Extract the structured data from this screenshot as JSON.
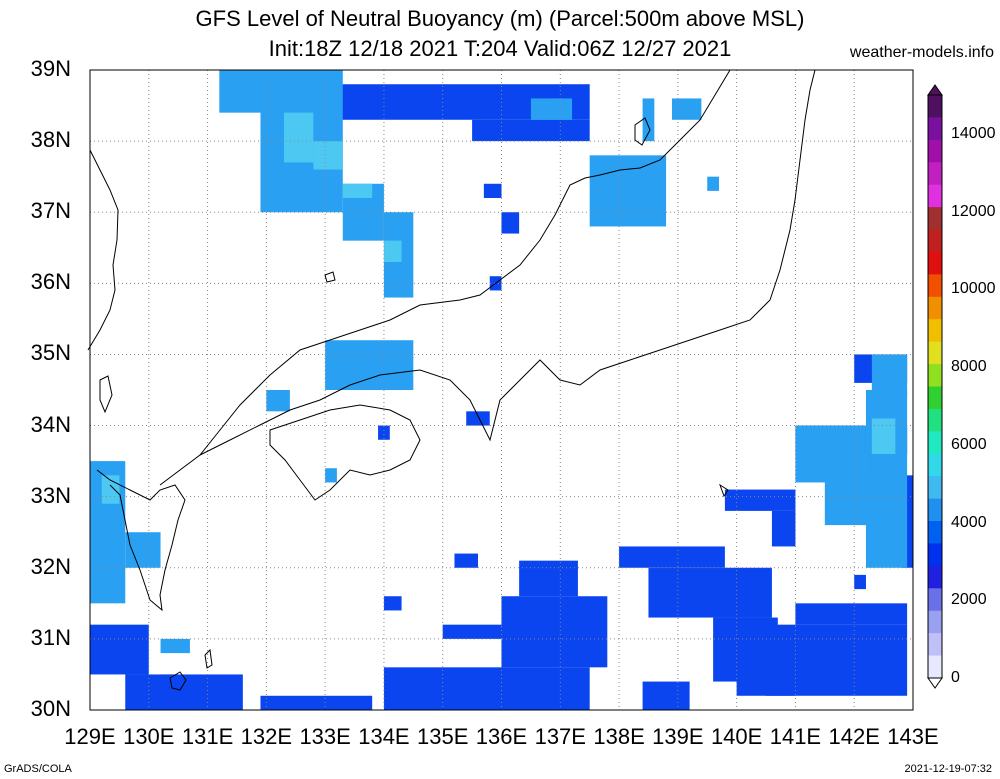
{
  "title_line1": "GFS Level of Neutral Buoyancy (m) (Parcel:500m above MSL)",
  "title_line2": "Init:18Z 12/18 2021 T:204 Valid:06Z 12/27 2021",
  "site": "weather-models.info",
  "footer_left": "GrADS/COLA",
  "footer_right": "2021-12-19-07:32",
  "lat_labels": [
    "39N",
    "38N",
    "37N",
    "36N",
    "35N",
    "34N",
    "33N",
    "32N",
    "31N",
    "30N"
  ],
  "lon_labels": [
    "129E",
    "130E",
    "131E",
    "132E",
    "133E",
    "134E",
    "135E",
    "136E",
    "137E",
    "138E",
    "139E",
    "140E",
    "141E",
    "142E",
    "143E"
  ],
  "colorbar": {
    "labels": [
      "0",
      "2000",
      "4000",
      "6000",
      "8000",
      "10000",
      "12000",
      "14000"
    ],
    "colors": [
      "#e8e8ff",
      "#c0c0f8",
      "#9aa0f0",
      "#6a70e8",
      "#2020e0",
      "#0030f0",
      "#0060f0",
      "#2090f0",
      "#40b8f0",
      "#30d8e8",
      "#20e8c0",
      "#20e080",
      "#30d030",
      "#90e020",
      "#e0e020",
      "#f0c000",
      "#f09000",
      "#f05000",
      "#e01010",
      "#c02020",
      "#a03030",
      "#e030e0",
      "#c020c0",
      "#a010a8",
      "#7a10a0",
      "#501060"
    ],
    "range": [
      0,
      15000
    ]
  },
  "chart_data": {
    "type": "heatmap",
    "lon_range": [
      129,
      143
    ],
    "lat_range": [
      30,
      39
    ],
    "unit": "m",
    "fields": [
      {
        "name": "lnb",
        "level": "2000-2500",
        "boxes": [
          [
            129.0,
            130.0,
            30.5,
            31.2
          ],
          [
            129.6,
            130.5,
            30.0,
            30.5
          ],
          [
            130.2,
            131.6,
            30.0,
            30.5
          ],
          [
            131.9,
            133.8,
            30.0,
            30.2
          ],
          [
            134.0,
            137.5,
            30.0,
            30.6
          ],
          [
            135.0,
            136.3,
            31.0,
            31.2
          ],
          [
            136.0,
            137.8,
            30.6,
            31.6
          ],
          [
            136.3,
            137.3,
            31.6,
            32.1
          ],
          [
            138.0,
            139.8,
            32.0,
            32.3
          ],
          [
            138.5,
            140.6,
            31.3,
            32.0
          ],
          [
            139.6,
            140.7,
            30.4,
            31.3
          ],
          [
            140.0,
            141.0,
            30.2,
            31.0
          ],
          [
            140.5,
            142.9,
            30.2,
            31.2
          ],
          [
            141.0,
            142.9,
            31.2,
            31.5
          ],
          [
            139.8,
            141.0,
            32.8,
            33.1
          ],
          [
            140.6,
            141.0,
            32.3,
            32.8
          ],
          [
            138.4,
            139.2,
            30.0,
            30.4
          ],
          [
            134.0,
            134.3,
            31.4,
            31.6
          ],
          [
            135.2,
            135.6,
            32.0,
            32.2
          ],
          [
            135.4,
            135.8,
            34.0,
            34.2
          ],
          [
            133.9,
            134.1,
            33.8,
            34.0
          ],
          [
            142.0,
            142.2,
            31.7,
            31.9
          ],
          [
            135.8,
            136.0,
            35.9,
            36.1
          ],
          [
            136.0,
            136.3,
            36.7,
            37.0
          ],
          [
            132.4,
            133.0,
            38.6,
            39.0
          ],
          [
            133.0,
            137.5,
            38.3,
            38.8
          ],
          [
            135.5,
            137.5,
            38.0,
            38.3
          ],
          [
            135.7,
            136.0,
            37.2,
            37.4
          ],
          [
            141.0,
            142.9,
            33.6,
            34.0
          ],
          [
            142.0,
            142.9,
            34.6,
            35.0
          ],
          [
            142.8,
            143.0,
            32.0,
            33.3
          ]
        ]
      },
      {
        "name": "lnb",
        "level": "2500-3000",
        "boxes": [
          [
            129.0,
            129.6,
            31.5,
            33.5
          ],
          [
            129.6,
            130.2,
            32.0,
            32.5
          ],
          [
            130.2,
            130.7,
            30.8,
            31.0
          ],
          [
            142.2,
            142.9,
            32.0,
            34.5
          ],
          [
            141.0,
            142.2,
            33.2,
            34.0
          ],
          [
            141.5,
            142.5,
            32.6,
            33.3
          ],
          [
            131.9,
            133.3,
            37.0,
            39.0
          ],
          [
            131.2,
            132.0,
            38.4,
            39.0
          ],
          [
            133.3,
            134.0,
            36.6,
            37.4
          ],
          [
            134.0,
            134.5,
            35.8,
            37.0
          ],
          [
            137.5,
            138.8,
            36.8,
            37.8
          ],
          [
            138.4,
            138.6,
            38.0,
            38.6
          ],
          [
            138.9,
            139.4,
            38.3,
            38.6
          ],
          [
            136.5,
            137.2,
            38.3,
            38.6
          ],
          [
            133.0,
            134.5,
            34.5,
            35.2
          ],
          [
            132.0,
            132.4,
            34.2,
            34.5
          ],
          [
            133.0,
            133.2,
            33.2,
            33.4
          ],
          [
            139.5,
            139.7,
            37.3,
            37.5
          ],
          [
            142.3,
            142.9,
            34.4,
            35.0
          ]
        ]
      },
      {
        "name": "lnb",
        "level": "3000-3500",
        "boxes": [
          [
            132.3,
            132.8,
            37.7,
            38.4
          ],
          [
            132.8,
            133.3,
            37.6,
            38.0
          ],
          [
            129.2,
            129.5,
            32.9,
            33.3
          ],
          [
            142.3,
            142.7,
            33.6,
            34.1
          ],
          [
            133.3,
            133.8,
            37.2,
            37.4
          ],
          [
            134.0,
            134.3,
            36.3,
            36.6
          ]
        ]
      }
    ]
  }
}
